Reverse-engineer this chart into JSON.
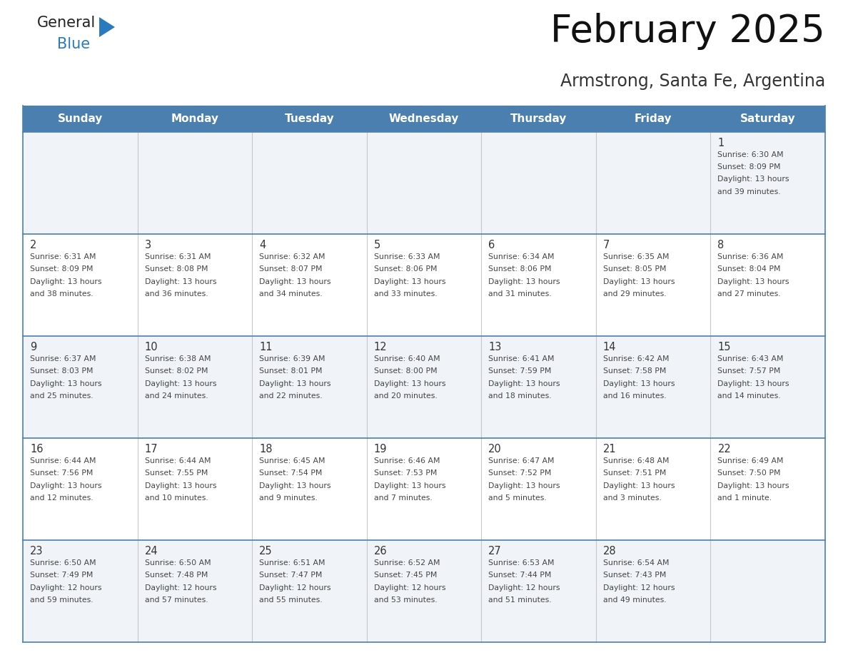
{
  "title": "February 2025",
  "subtitle": "Armstrong, Santa Fe, Argentina",
  "header_bg_color": "#4a7faf",
  "header_text_color": "#ffffff",
  "day_names": [
    "Sunday",
    "Monday",
    "Tuesday",
    "Wednesday",
    "Thursday",
    "Friday",
    "Saturday"
  ],
  "cell_bg_light": "#f0f4f8",
  "cell_bg_white": "#ffffff",
  "cell_border_color": "#4a7faf",
  "day_number_color": "#333333",
  "info_text_color": "#444444",
  "logo_general_color": "#222222",
  "logo_blue_color": "#2a7abf",
  "title_color": "#111111",
  "subtitle_color": "#333333",
  "calendar_data": [
    [
      null,
      null,
      null,
      null,
      null,
      null,
      {
        "day": 1,
        "sunrise": "6:30 AM",
        "sunset": "8:09 PM",
        "daylight": "13 hours and 39 minutes."
      }
    ],
    [
      {
        "day": 2,
        "sunrise": "6:31 AM",
        "sunset": "8:09 PM",
        "daylight": "13 hours and 38 minutes."
      },
      {
        "day": 3,
        "sunrise": "6:31 AM",
        "sunset": "8:08 PM",
        "daylight": "13 hours and 36 minutes."
      },
      {
        "day": 4,
        "sunrise": "6:32 AM",
        "sunset": "8:07 PM",
        "daylight": "13 hours and 34 minutes."
      },
      {
        "day": 5,
        "sunrise": "6:33 AM",
        "sunset": "8:06 PM",
        "daylight": "13 hours and 33 minutes."
      },
      {
        "day": 6,
        "sunrise": "6:34 AM",
        "sunset": "8:06 PM",
        "daylight": "13 hours and 31 minutes."
      },
      {
        "day": 7,
        "sunrise": "6:35 AM",
        "sunset": "8:05 PM",
        "daylight": "13 hours and 29 minutes."
      },
      {
        "day": 8,
        "sunrise": "6:36 AM",
        "sunset": "8:04 PM",
        "daylight": "13 hours and 27 minutes."
      }
    ],
    [
      {
        "day": 9,
        "sunrise": "6:37 AM",
        "sunset": "8:03 PM",
        "daylight": "13 hours and 25 minutes."
      },
      {
        "day": 10,
        "sunrise": "6:38 AM",
        "sunset": "8:02 PM",
        "daylight": "13 hours and 24 minutes."
      },
      {
        "day": 11,
        "sunrise": "6:39 AM",
        "sunset": "8:01 PM",
        "daylight": "13 hours and 22 minutes."
      },
      {
        "day": 12,
        "sunrise": "6:40 AM",
        "sunset": "8:00 PM",
        "daylight": "13 hours and 20 minutes."
      },
      {
        "day": 13,
        "sunrise": "6:41 AM",
        "sunset": "7:59 PM",
        "daylight": "13 hours and 18 minutes."
      },
      {
        "day": 14,
        "sunrise": "6:42 AM",
        "sunset": "7:58 PM",
        "daylight": "13 hours and 16 minutes."
      },
      {
        "day": 15,
        "sunrise": "6:43 AM",
        "sunset": "7:57 PM",
        "daylight": "13 hours and 14 minutes."
      }
    ],
    [
      {
        "day": 16,
        "sunrise": "6:44 AM",
        "sunset": "7:56 PM",
        "daylight": "13 hours and 12 minutes."
      },
      {
        "day": 17,
        "sunrise": "6:44 AM",
        "sunset": "7:55 PM",
        "daylight": "13 hours and 10 minutes."
      },
      {
        "day": 18,
        "sunrise": "6:45 AM",
        "sunset": "7:54 PM",
        "daylight": "13 hours and 9 minutes."
      },
      {
        "day": 19,
        "sunrise": "6:46 AM",
        "sunset": "7:53 PM",
        "daylight": "13 hours and 7 minutes."
      },
      {
        "day": 20,
        "sunrise": "6:47 AM",
        "sunset": "7:52 PM",
        "daylight": "13 hours and 5 minutes."
      },
      {
        "day": 21,
        "sunrise": "6:48 AM",
        "sunset": "7:51 PM",
        "daylight": "13 hours and 3 minutes."
      },
      {
        "day": 22,
        "sunrise": "6:49 AM",
        "sunset": "7:50 PM",
        "daylight": "13 hours and 1 minute."
      }
    ],
    [
      {
        "day": 23,
        "sunrise": "6:50 AM",
        "sunset": "7:49 PM",
        "daylight": "12 hours and 59 minutes."
      },
      {
        "day": 24,
        "sunrise": "6:50 AM",
        "sunset": "7:48 PM",
        "daylight": "12 hours and 57 minutes."
      },
      {
        "day": 25,
        "sunrise": "6:51 AM",
        "sunset": "7:47 PM",
        "daylight": "12 hours and 55 minutes."
      },
      {
        "day": 26,
        "sunrise": "6:52 AM",
        "sunset": "7:45 PM",
        "daylight": "12 hours and 53 minutes."
      },
      {
        "day": 27,
        "sunrise": "6:53 AM",
        "sunset": "7:44 PM",
        "daylight": "12 hours and 51 minutes."
      },
      {
        "day": 28,
        "sunrise": "6:54 AM",
        "sunset": "7:43 PM",
        "daylight": "12 hours and 49 minutes."
      },
      null
    ]
  ]
}
